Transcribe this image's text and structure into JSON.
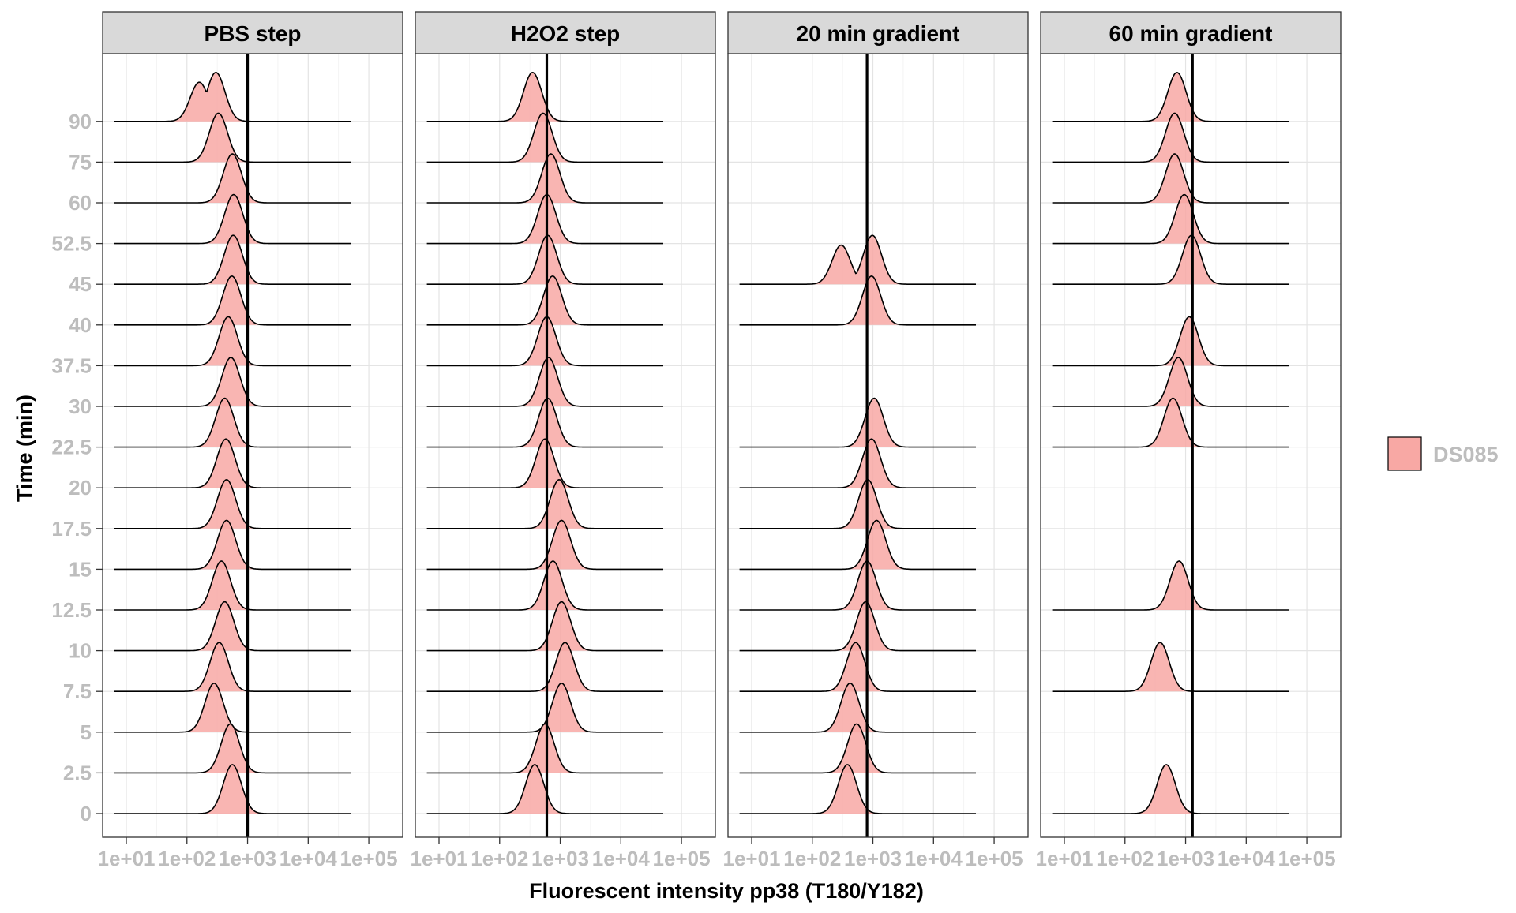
{
  "chart_data": {
    "type": "ridgeline",
    "xlabel": "Fluorescent intensity pp38 (T180/Y182)",
    "ylabel": "Time (min)",
    "x_scale": "log10",
    "x_ticks": [
      "1e+01",
      "1e+02",
      "1e+03",
      "1e+04",
      "1e+05"
    ],
    "y_ticks": [
      "0",
      "2.5",
      "5",
      "7.5",
      "10",
      "12.5",
      "15",
      "17.5",
      "20",
      "22.5",
      "30",
      "37.5",
      "40",
      "45",
      "52.5",
      "60",
      "75",
      "90"
    ],
    "legend": {
      "position": "right",
      "entries": [
        {
          "label": "DS085",
          "color": "#F8A8A4"
        }
      ]
    },
    "fill_color": "#F8A8A4",
    "panels": [
      {
        "title": "PBS step",
        "ref_line": 1000,
        "ridges": [
          {
            "time": "0",
            "peak": 560
          },
          {
            "time": "2.5",
            "peak": 520
          },
          {
            "time": "5",
            "peak": 280
          },
          {
            "time": "7.5",
            "peak": 340
          },
          {
            "time": "10",
            "peak": 420
          },
          {
            "time": "12.5",
            "peak": 370
          },
          {
            "time": "15",
            "peak": 450
          },
          {
            "time": "17.5",
            "peak": 450
          },
          {
            "time": "20",
            "peak": 440
          },
          {
            "time": "22.5",
            "peak": 420
          },
          {
            "time": "30",
            "peak": 530
          },
          {
            "time": "37.5",
            "peak": 480
          },
          {
            "time": "40",
            "peak": 550
          },
          {
            "time": "45",
            "peak": 580
          },
          {
            "time": "52.5",
            "peak": 590
          },
          {
            "time": "60",
            "peak": 560
          },
          {
            "time": "75",
            "peak": 330
          },
          {
            "time": "90",
            "peak": 300,
            "peak2": 160
          }
        ]
      },
      {
        "title": "H2O2 step",
        "ref_line": 600,
        "ridges": [
          {
            "time": "0",
            "peak": 380
          },
          {
            "time": "2.5",
            "peak": 560
          },
          {
            "time": "5",
            "peak": 1050
          },
          {
            "time": "7.5",
            "peak": 1200
          },
          {
            "time": "10",
            "peak": 1050
          },
          {
            "time": "12.5",
            "peak": 760
          },
          {
            "time": "15",
            "peak": 1050
          },
          {
            "time": "17.5",
            "peak": 960
          },
          {
            "time": "20",
            "peak": 560
          },
          {
            "time": "22.5",
            "peak": 620
          },
          {
            "time": "30",
            "peak": 640
          },
          {
            "time": "37.5",
            "peak": 600
          },
          {
            "time": "40",
            "peak": 750
          },
          {
            "time": "45",
            "peak": 620
          },
          {
            "time": "52.5",
            "peak": 600
          },
          {
            "time": "60",
            "peak": 700
          },
          {
            "time": "75",
            "peak": 520
          },
          {
            "time": "90",
            "peak": 350
          }
        ]
      },
      {
        "title": "20 min gradient",
        "ref_line": 800,
        "ridges": [
          {
            "time": "0",
            "peak": 380
          },
          {
            "time": "2.5",
            "peak": 540
          },
          {
            "time": "5",
            "peak": 420
          },
          {
            "time": "7.5",
            "peak": 520
          },
          {
            "time": "10",
            "peak": 760
          },
          {
            "time": "12.5",
            "peak": 800
          },
          {
            "time": "15",
            "peak": 1150
          },
          {
            "time": "17.5",
            "peak": 820
          },
          {
            "time": "20",
            "peak": 950
          },
          {
            "time": "22.5",
            "peak": 1050
          },
          {
            "time": "30",
            "peak": null
          },
          {
            "time": "37.5",
            "peak": null
          },
          {
            "time": "40",
            "peak": 950
          },
          {
            "time": "45",
            "peak": 980,
            "peak2": 300
          },
          {
            "time": "52.5",
            "peak": null
          },
          {
            "time": "60",
            "peak": null
          },
          {
            "time": "75",
            "peak": null
          },
          {
            "time": "90",
            "peak": null
          }
        ]
      },
      {
        "title": "60 min gradient",
        "ref_line": 1300,
        "ridges": [
          {
            "time": "0",
            "peak": 480
          },
          {
            "time": "2.5",
            "peak": null
          },
          {
            "time": "5",
            "peak": null
          },
          {
            "time": "7.5",
            "peak": 380
          },
          {
            "time": "10",
            "peak": null
          },
          {
            "time": "12.5",
            "peak": 780
          },
          {
            "time": "15",
            "peak": null
          },
          {
            "time": "17.5",
            "peak": null
          },
          {
            "time": "20",
            "peak": null
          },
          {
            "time": "22.5",
            "peak": 620
          },
          {
            "time": "30",
            "peak": 760
          },
          {
            "time": "37.5",
            "peak": 1150
          },
          {
            "time": "40",
            "peak": null
          },
          {
            "time": "45",
            "peak": 1250
          },
          {
            "time": "52.5",
            "peak": 950
          },
          {
            "time": "60",
            "peak": 660
          },
          {
            "time": "75",
            "peak": 660
          },
          {
            "time": "90",
            "peak": 720
          }
        ]
      }
    ]
  }
}
